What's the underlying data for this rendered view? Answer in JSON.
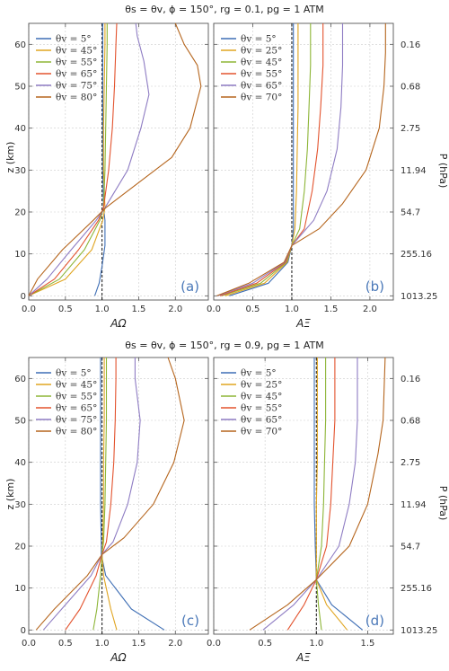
{
  "colors": {
    "axes": "#555555",
    "grid": "#cccccc",
    "reference": "#111111",
    "panel_label": "#4a78b8"
  },
  "figure": {
    "top_title": "θs = θv, ϕ = 150°, rg = 0.1, pg = 1 ATM",
    "bottom_title": "θs = θv, ϕ = 150°, rg = 0.9, pg = 1 ATM",
    "ylabel_left": "z (km)",
    "ylabel_right": "P (hPa)",
    "pressure_ticks": [
      {
        "z": 0,
        "label": "1013.25"
      },
      {
        "z": 10,
        "label": "255.16"
      },
      {
        "z": 20,
        "label": "54.7"
      },
      {
        "z": 30,
        "label": "11.94"
      },
      {
        "z": 40,
        "label": "2.75"
      },
      {
        "z": 50,
        "label": "0.68"
      },
      {
        "z": 60,
        "label": "0.16"
      }
    ]
  },
  "chart_data": [
    {
      "type": "line",
      "panel": "(a)",
      "xlabel": "AΩ",
      "xlim": [
        0,
        2.45
      ],
      "ylim": [
        -1,
        65
      ],
      "xticks": [
        0.0,
        0.5,
        1.0,
        1.5,
        2.0
      ],
      "yticks": [
        0,
        10,
        20,
        30,
        40,
        50,
        60
      ],
      "reference_line_x": 1.0,
      "grid": true,
      "legend_position": "top-left",
      "series": [
        {
          "name": "θv = 5°",
          "color": "#3f6fb5",
          "x": [
            0.9,
            0.96,
            1.0,
            1.04,
            1.04,
            1.02,
            1.01,
            1.01,
            1.01,
            1.01,
            1.01
          ],
          "y": [
            0,
            3,
            7,
            12,
            18,
            21,
            30,
            40,
            50,
            60,
            65
          ]
        },
        {
          "name": "θv = 45°",
          "color": "#e0a521",
          "x": [
            0.0,
            0.5,
            0.86,
            1.01,
            1.04,
            1.02,
            1.02,
            1.03,
            1.04,
            1.04
          ],
          "y": [
            0,
            4,
            11,
            18,
            21,
            30,
            40,
            50,
            60,
            65
          ]
        },
        {
          "name": "θv = 55°",
          "color": "#8db537",
          "x": [
            0.0,
            0.42,
            0.76,
            0.97,
            1.02,
            1.04,
            1.05,
            1.06,
            1.07,
            1.07
          ],
          "y": [
            0,
            4,
            11,
            18,
            21,
            30,
            40,
            50,
            60,
            65
          ]
        },
        {
          "name": "θv = 65°",
          "color": "#e3532e",
          "x": [
            0.0,
            0.35,
            0.68,
            0.95,
            1.02,
            1.09,
            1.14,
            1.17,
            1.19,
            1.2
          ],
          "y": [
            0,
            4,
            11,
            18,
            21,
            30,
            40,
            50,
            60,
            65
          ]
        },
        {
          "name": "θv = 75°",
          "color": "#8e7cc3",
          "x": [
            0.0,
            0.25,
            0.58,
            0.92,
            1.04,
            1.35,
            1.53,
            1.64,
            1.57,
            1.48,
            1.46
          ],
          "y": [
            0,
            4,
            11,
            18,
            21,
            30,
            40,
            48,
            56,
            62,
            65
          ]
        },
        {
          "name": "θv = 80°",
          "color": "#b5651d",
          "x": [
            0.0,
            0.12,
            0.46,
            0.88,
            1.05,
            1.5,
            1.95,
            2.2,
            2.35,
            2.3,
            2.12,
            2.0
          ],
          "y": [
            0,
            4,
            11,
            18,
            21,
            27,
            33,
            40,
            50,
            55,
            60,
            65
          ]
        }
      ]
    },
    {
      "type": "line",
      "panel": "(b)",
      "xlabel": "AΞ",
      "xlim": [
        0,
        2.3
      ],
      "ylim": [
        -1,
        65
      ],
      "xticks": [
        0.0,
        0.5,
        1.0,
        1.5,
        2.0
      ],
      "yticks": [
        0,
        10,
        20,
        30,
        40,
        50,
        60
      ],
      "reference_line_x": 1.0,
      "grid": true,
      "legend_position": "top-left",
      "series": [
        {
          "name": "θv = 5°",
          "color": "#3f6fb5",
          "x": [
            0.2,
            0.7,
            0.95,
            1.0,
            1.02,
            1.02,
            1.02,
            1.02,
            1.02,
            1.02
          ],
          "y": [
            0,
            3,
            8,
            12,
            16,
            25,
            35,
            45,
            55,
            65
          ]
        },
        {
          "name": "θv = 25°",
          "color": "#e0a521",
          "x": [
            0.15,
            0.65,
            0.94,
            1.0,
            1.04,
            1.06,
            1.07,
            1.08,
            1.08,
            1.08
          ],
          "y": [
            0,
            3,
            8,
            12,
            16,
            25,
            35,
            45,
            55,
            65
          ]
        },
        {
          "name": "θv = 45°",
          "color": "#8db537",
          "x": [
            0.1,
            0.6,
            0.93,
            1.0,
            1.1,
            1.16,
            1.2,
            1.22,
            1.24,
            1.24
          ],
          "y": [
            0,
            3,
            8,
            12,
            16,
            25,
            35,
            45,
            55,
            65
          ]
        },
        {
          "name": "θv = 55°",
          "color": "#e3532e",
          "x": [
            0.08,
            0.55,
            0.92,
            1.0,
            1.16,
            1.26,
            1.33,
            1.37,
            1.4,
            1.4
          ],
          "y": [
            0,
            3,
            8,
            12,
            16,
            25,
            35,
            45,
            55,
            65
          ]
        },
        {
          "name": "θv = 65°",
          "color": "#8e7cc3",
          "x": [
            0.05,
            0.5,
            0.91,
            1.0,
            1.28,
            1.45,
            1.58,
            1.63,
            1.65,
            1.65
          ],
          "y": [
            0,
            3,
            8,
            12,
            18,
            25,
            35,
            45,
            55,
            65
          ]
        },
        {
          "name": "θv = 70°",
          "color": "#b5651d",
          "x": [
            0.04,
            0.45,
            0.9,
            1.0,
            1.35,
            1.65,
            1.95,
            2.12,
            2.18,
            2.2,
            2.2
          ],
          "y": [
            0,
            3,
            8,
            12,
            16,
            22,
            30,
            40,
            50,
            58,
            65
          ]
        }
      ]
    },
    {
      "type": "line",
      "panel": "(c)",
      "xlabel": "AΩ",
      "xlim": [
        0,
        2.45
      ],
      "ylim": [
        -1,
        65
      ],
      "xticks": [
        0.0,
        0.5,
        1.0,
        1.5,
        2.0
      ],
      "yticks": [
        0,
        10,
        20,
        30,
        40,
        50,
        60
      ],
      "reference_line_x": 1.0,
      "grid": true,
      "legend_position": "top-left",
      "series": [
        {
          "name": "θv = 5°",
          "color": "#3f6fb5",
          "x": [
            1.85,
            1.4,
            1.05,
            0.99,
            0.99,
            0.98,
            0.98,
            0.98,
            0.98,
            0.98
          ],
          "y": [
            0,
            5,
            13,
            18,
            21,
            30,
            40,
            50,
            60,
            65
          ]
        },
        {
          "name": "θv = 45°",
          "color": "#e0a521",
          "x": [
            1.2,
            1.12,
            1.02,
            1.0,
            1.01,
            1.02,
            1.02,
            1.03,
            1.03,
            1.03
          ],
          "y": [
            0,
            5,
            13,
            18,
            21,
            30,
            40,
            50,
            60,
            65
          ]
        },
        {
          "name": "θv = 55°",
          "color": "#8db537",
          "x": [
            0.88,
            0.93,
            0.98,
            1.0,
            1.02,
            1.04,
            1.05,
            1.06,
            1.06,
            1.06
          ],
          "y": [
            0,
            5,
            13,
            18,
            21,
            30,
            40,
            50,
            60,
            65
          ]
        },
        {
          "name": "θv = 65°",
          "color": "#e3532e",
          "x": [
            0.5,
            0.7,
            0.92,
            1.0,
            1.06,
            1.12,
            1.16,
            1.18,
            1.19,
            1.19
          ],
          "y": [
            0,
            5,
            13,
            18,
            21,
            30,
            40,
            50,
            60,
            65
          ]
        },
        {
          "name": "θv = 75°",
          "color": "#8e7cc3",
          "x": [
            0.2,
            0.45,
            0.85,
            1.0,
            1.15,
            1.35,
            1.48,
            1.52,
            1.45,
            1.45
          ],
          "y": [
            0,
            5,
            13,
            18,
            21,
            30,
            40,
            50,
            60,
            65
          ]
        },
        {
          "name": "θv = 80°",
          "color": "#b5651d",
          "x": [
            0.1,
            0.35,
            0.8,
            1.0,
            1.3,
            1.7,
            1.98,
            2.12,
            2.0,
            1.9
          ],
          "y": [
            0,
            5,
            13,
            18,
            22,
            30,
            40,
            50,
            60,
            65
          ]
        }
      ]
    },
    {
      "type": "line",
      "panel": "(d)",
      "xlabel": "AΞ",
      "xlim": [
        0,
        1.75
      ],
      "ylim": [
        -1,
        65
      ],
      "xticks": [
        0.0,
        0.5,
        1.0,
        1.5
      ],
      "yticks": [
        0,
        10,
        20,
        30,
        40,
        50,
        60
      ],
      "reference_line_x": 1.0,
      "grid": true,
      "legend_position": "top-left",
      "series": [
        {
          "name": "θv = 5°",
          "color": "#3f6fb5",
          "x": [
            1.45,
            1.15,
            1.0,
            0.99,
            0.98,
            0.98,
            0.98,
            0.98
          ],
          "y": [
            0,
            6,
            12,
            20,
            30,
            40,
            50,
            65
          ]
        },
        {
          "name": "θv = 25°",
          "color": "#e0a521",
          "x": [
            1.3,
            1.1,
            1.0,
            1.0,
            1.0,
            1.01,
            1.01,
            1.01
          ],
          "y": [
            0,
            6,
            12,
            20,
            30,
            40,
            50,
            65
          ]
        },
        {
          "name": "θv = 45°",
          "color": "#8db537",
          "x": [
            1.05,
            1.02,
            1.0,
            1.05,
            1.07,
            1.08,
            1.09,
            1.09
          ],
          "y": [
            0,
            6,
            12,
            20,
            30,
            40,
            50,
            65
          ]
        },
        {
          "name": "θv = 55°",
          "color": "#e3532e",
          "x": [
            0.72,
            0.88,
            1.0,
            1.1,
            1.14,
            1.16,
            1.18,
            1.18
          ],
          "y": [
            0,
            6,
            12,
            20,
            30,
            40,
            50,
            65
          ]
        },
        {
          "name": "θv = 65°",
          "color": "#8e7cc3",
          "x": [
            0.48,
            0.78,
            1.0,
            1.22,
            1.32,
            1.38,
            1.4,
            1.4
          ],
          "y": [
            0,
            6,
            12,
            20,
            30,
            40,
            50,
            65
          ]
        },
        {
          "name": "θv = 70°",
          "color": "#b5651d",
          "x": [
            0.35,
            0.72,
            1.0,
            1.32,
            1.5,
            1.6,
            1.65,
            1.67
          ],
          "y": [
            0,
            6,
            12,
            20,
            30,
            42,
            50,
            65
          ]
        }
      ]
    }
  ]
}
